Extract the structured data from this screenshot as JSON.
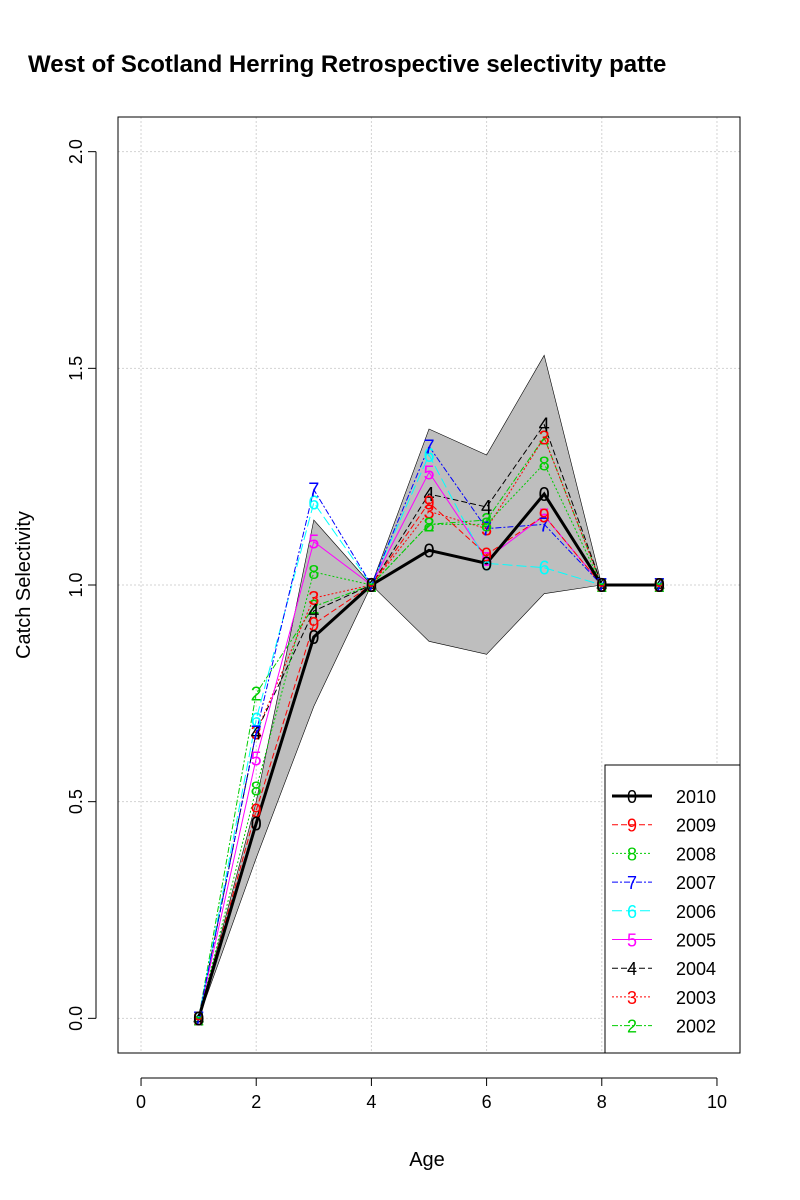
{
  "chart_data": {
    "type": "line",
    "title": "West of Scotland Herring Retrospective selectivity patte",
    "xlabel": "Age",
    "ylabel": "Catch Selectivity",
    "xlim": [
      -0.4,
      10.4
    ],
    "ylim": [
      -0.08,
      2.08
    ],
    "xticks": [
      "0",
      "2",
      "4",
      "6",
      "8",
      "10"
    ],
    "yticks": [
      "0.0",
      "0.5",
      "1.0",
      "1.5",
      "2.0"
    ],
    "grid": true,
    "legend_position": "bottom-right",
    "x": [
      1,
      2,
      3,
      4,
      5,
      6,
      7,
      8,
      9
    ],
    "band": {
      "color": "#bebebe",
      "upper": [
        0.0,
        0.5,
        1.15,
        1.0,
        1.36,
        1.3,
        1.53,
        1.0,
        1.0
      ],
      "lower": [
        0.0,
        0.37,
        0.72,
        1.0,
        0.87,
        0.84,
        0.98,
        1.0,
        1.0
      ]
    },
    "series": [
      {
        "name": "2010",
        "symbol": "0",
        "color": "#000000",
        "dash": "",
        "width": 3,
        "values": [
          0.0,
          0.45,
          0.88,
          1.0,
          1.08,
          1.05,
          1.21,
          1.0,
          1.0
        ]
      },
      {
        "name": "2009",
        "symbol": "9",
        "color": "#ff0000",
        "dash": "6,3",
        "width": 1,
        "values": [
          0.0,
          0.48,
          0.91,
          1.0,
          1.19,
          1.07,
          1.16,
          1.0,
          1.0
        ]
      },
      {
        "name": "2008",
        "symbol": "8",
        "color": "#00cd00",
        "dash": "2,2",
        "width": 1,
        "values": [
          0.0,
          0.53,
          1.03,
          1.0,
          1.14,
          1.14,
          1.28,
          1.0,
          1.0
        ]
      },
      {
        "name": "2007",
        "symbol": "7",
        "color": "#0000ff",
        "dash": "6,2,2,2",
        "width": 1,
        "values": [
          0.0,
          0.66,
          1.22,
          1.0,
          1.32,
          1.13,
          1.14,
          1.0,
          1.0
        ]
      },
      {
        "name": "2006",
        "symbol": "6",
        "color": "#00ffff",
        "dash": "10,4",
        "width": 1,
        "values": [
          0.0,
          0.69,
          1.19,
          1.0,
          1.3,
          1.05,
          1.04,
          1.0,
          1.0
        ]
      },
      {
        "name": "2005",
        "symbol": "5",
        "color": "#ff00ff",
        "dash": "",
        "width": 1,
        "values": [
          0.0,
          0.6,
          1.1,
          1.0,
          1.26,
          1.06,
          1.16,
          1.0,
          1.0
        ]
      },
      {
        "name": "2004",
        "symbol": "4",
        "color": "#000000",
        "dash": "6,3",
        "width": 1,
        "values": [
          0.0,
          0.66,
          0.94,
          1.0,
          1.21,
          1.18,
          1.37,
          1.0,
          1.0
        ]
      },
      {
        "name": "2003",
        "symbol": "3",
        "color": "#ff0000",
        "dash": "2,2",
        "width": 1,
        "values": [
          0.0,
          0.66,
          0.97,
          1.0,
          1.17,
          1.13,
          1.34,
          1.0,
          1.0
        ]
      },
      {
        "name": "2002",
        "symbol": "2",
        "color": "#00cd00",
        "dash": "6,2,2,2",
        "width": 1,
        "values": [
          0.0,
          0.75,
          0.95,
          1.0,
          1.14,
          1.15,
          1.34,
          1.0,
          1.0
        ]
      }
    ]
  }
}
